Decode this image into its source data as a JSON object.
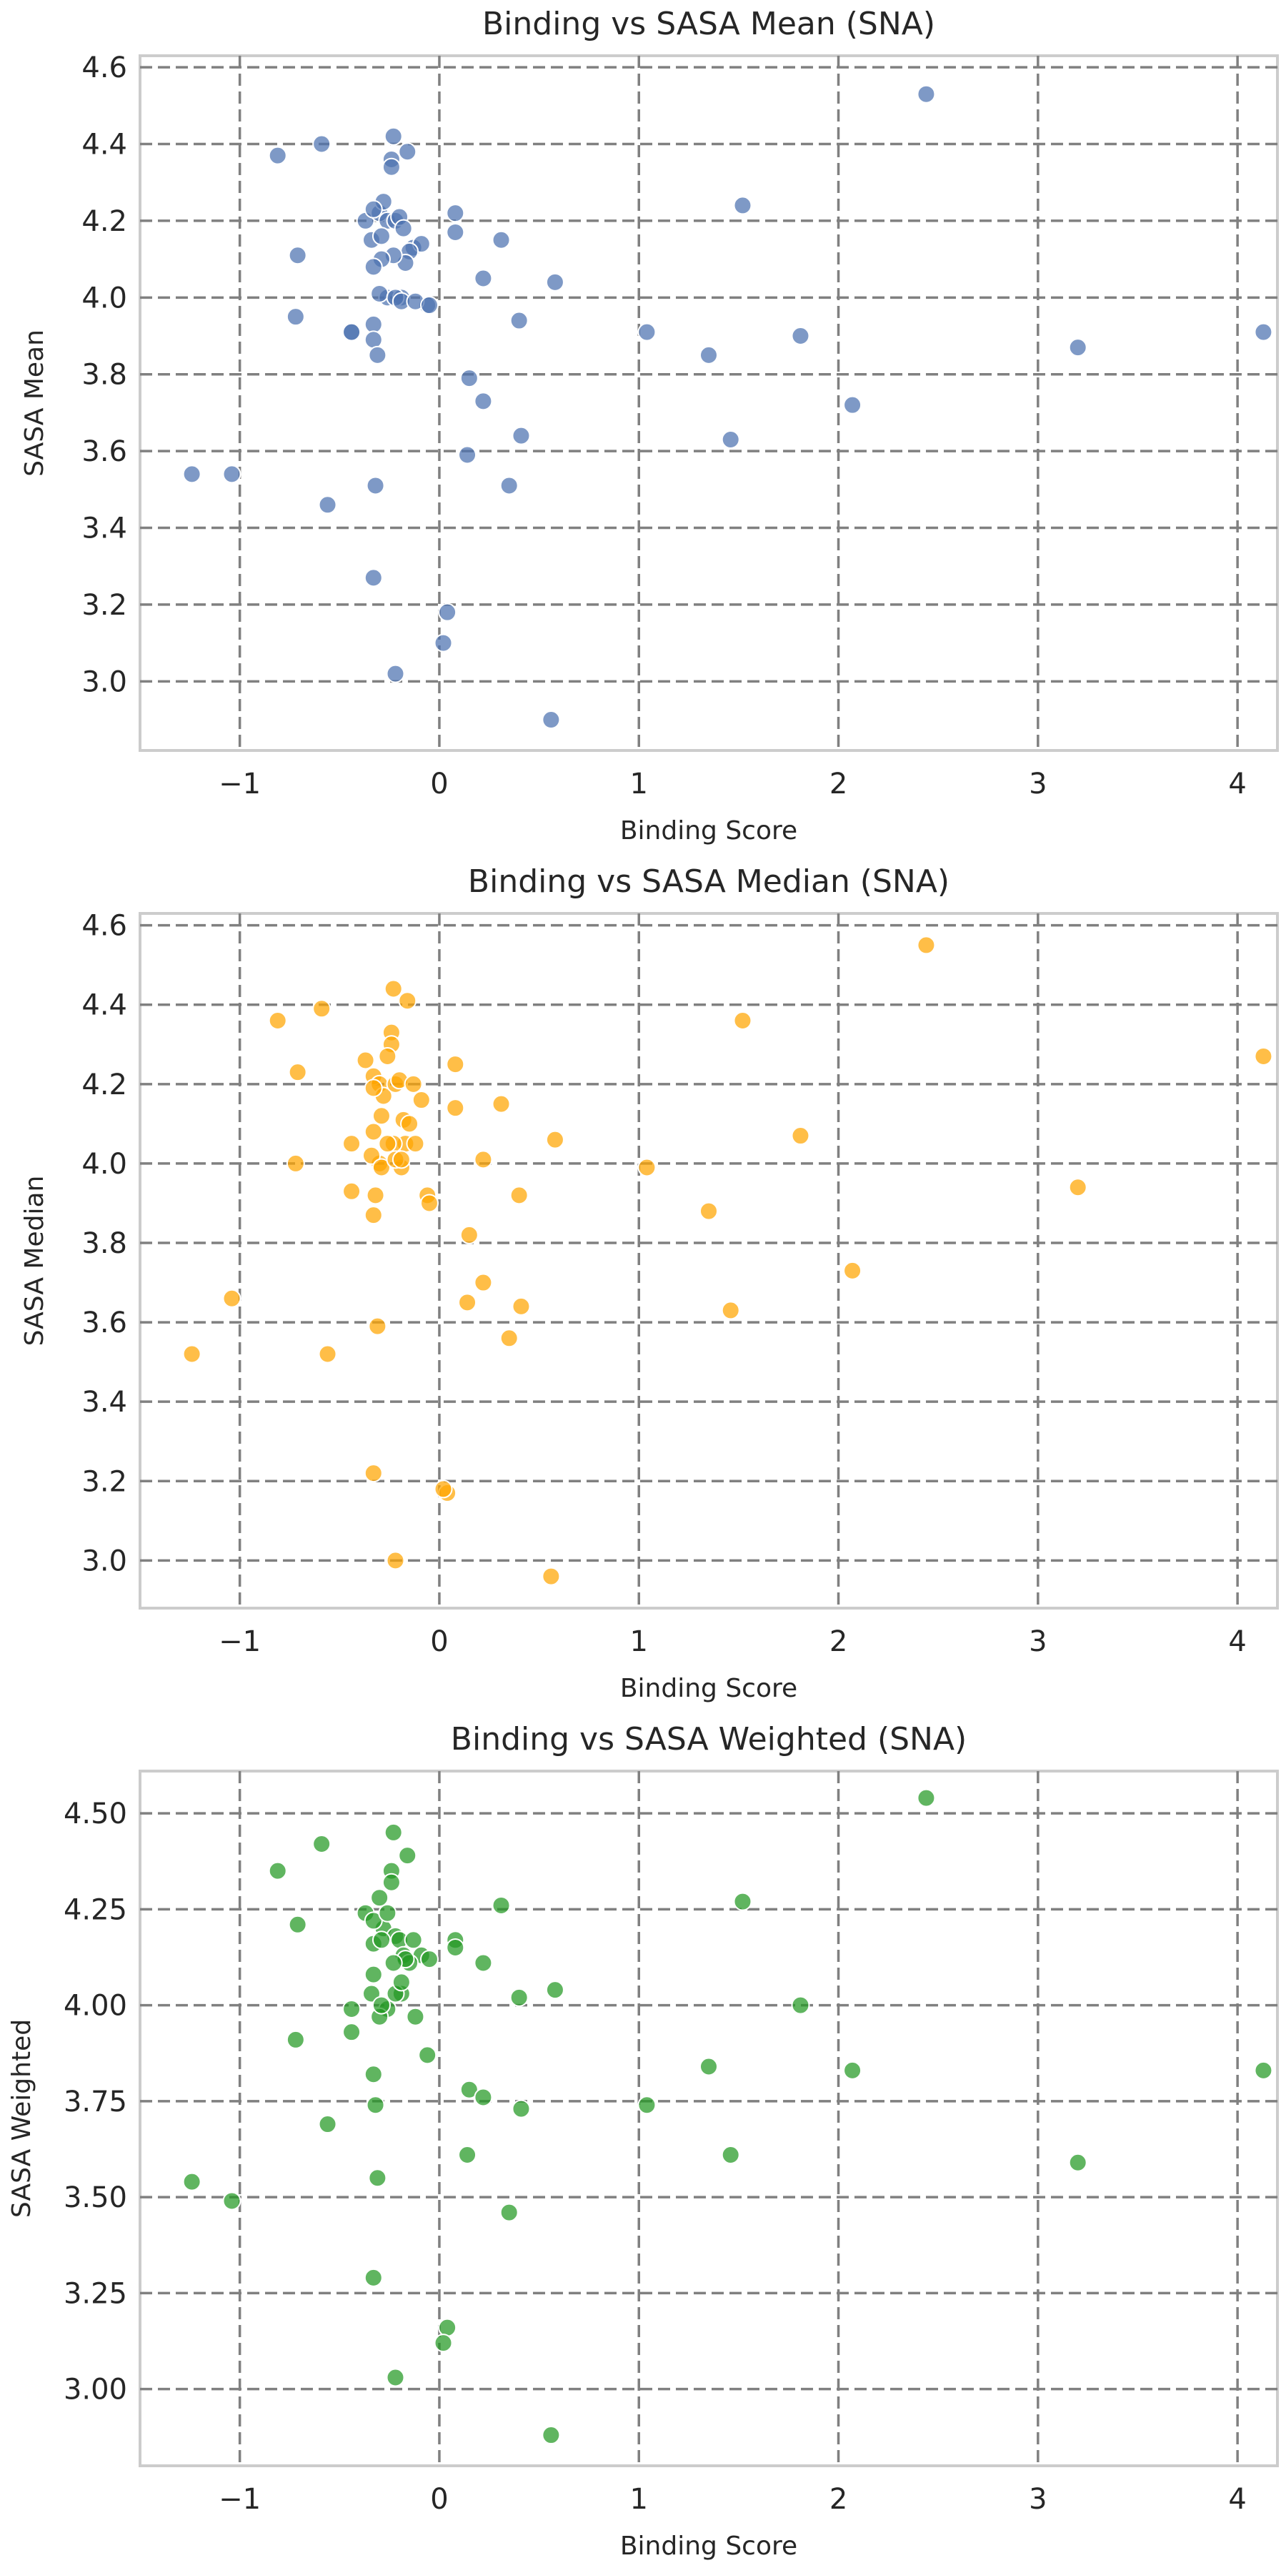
{
  "chart_data": [
    {
      "type": "scatter",
      "title": "Binding vs SASA Mean (SNA)",
      "xlabel": "Binding Score",
      "ylabel": "SASA Mean",
      "xlim": [
        -1.5,
        4.2
      ],
      "ylim": [
        2.82,
        4.63
      ],
      "xticks": [
        -1,
        0,
        1,
        2,
        3,
        4
      ],
      "xtick_labels": [
        "−1",
        "0",
        "1",
        "2",
        "3",
        "4"
      ],
      "yticks": [
        3.0,
        3.2,
        3.4,
        3.6,
        3.8,
        4.0,
        4.2,
        4.4,
        4.6
      ],
      "ytick_labels": [
        "3.0",
        "3.2",
        "3.4",
        "3.6",
        "3.8",
        "4.0",
        "4.2",
        "4.4",
        "4.6"
      ],
      "grid": true,
      "color": "#4c72b0",
      "x": [
        -0.59,
        -0.81,
        -0.71,
        -0.72,
        -0.44,
        -0.44,
        -0.33,
        -0.33,
        -0.31,
        -1.24,
        -1.04,
        -0.56,
        -0.32,
        -0.33,
        -0.23,
        -0.24,
        -0.24,
        -0.16,
        -0.37,
        -0.3,
        -0.28,
        -0.33,
        -0.26,
        -0.22,
        -0.2,
        -0.18,
        -0.13,
        -0.09,
        -0.15,
        -0.17,
        -0.06,
        -0.23,
        -0.29,
        -0.33,
        -0.26,
        -0.19,
        -0.3,
        -0.34,
        -0.29,
        -0.22,
        -0.19,
        -0.12,
        -0.05,
        0.08,
        0.08,
        0.31,
        0.22,
        0.58,
        0.4,
        1.52,
        1.04,
        1.35,
        1.81,
        3.2,
        4.13,
        2.44,
        0.15,
        0.22,
        2.07,
        0.14,
        0.35,
        0.41,
        1.46,
        0.04,
        0.02,
        0.56,
        -0.22
      ],
      "y": [
        4.4,
        4.37,
        4.11,
        3.95,
        3.91,
        3.91,
        3.93,
        3.89,
        3.85,
        3.54,
        3.54,
        3.46,
        3.51,
        3.27,
        4.42,
        4.36,
        4.34,
        4.38,
        4.2,
        4.22,
        4.25,
        4.23,
        4.2,
        4.2,
        4.21,
        4.18,
        4.13,
        4.14,
        4.12,
        4.09,
        3.98,
        4.11,
        4.1,
        4.08,
        4.0,
        4.0,
        4.01,
        4.15,
        4.16,
        4.0,
        3.99,
        3.99,
        3.98,
        4.22,
        4.17,
        4.15,
        4.05,
        4.04,
        3.94,
        4.24,
        3.91,
        3.85,
        3.9,
        3.87,
        3.91,
        4.53,
        3.79,
        3.73,
        3.72,
        3.59,
        3.51,
        3.64,
        3.63,
        3.18,
        3.1,
        2.9,
        3.02
      ]
    },
    {
      "type": "scatter",
      "title": "Binding vs SASA Median (SNA)",
      "xlabel": "Binding Score",
      "ylabel": "SASA Median",
      "xlim": [
        -1.5,
        4.2
      ],
      "ylim": [
        2.88,
        4.63
      ],
      "xticks": [
        -1,
        0,
        1,
        2,
        3,
        4
      ],
      "xtick_labels": [
        "−1",
        "0",
        "1",
        "2",
        "3",
        "4"
      ],
      "yticks": [
        3.0,
        3.2,
        3.4,
        3.6,
        3.8,
        4.0,
        4.2,
        4.4,
        4.6
      ],
      "ytick_labels": [
        "3.0",
        "3.2",
        "3.4",
        "3.6",
        "3.8",
        "4.0",
        "4.2",
        "4.4",
        "4.6"
      ],
      "grid": true,
      "color": "#ffa500",
      "x": [
        -0.59,
        -0.81,
        -0.71,
        -0.72,
        -0.44,
        -0.44,
        -0.33,
        -0.33,
        -0.31,
        -1.24,
        -1.04,
        -0.56,
        -0.32,
        -0.33,
        -0.23,
        -0.24,
        -0.24,
        -0.16,
        -0.37,
        -0.3,
        -0.28,
        -0.33,
        -0.26,
        -0.22,
        -0.2,
        -0.18,
        -0.13,
        -0.09,
        -0.15,
        -0.17,
        -0.06,
        -0.23,
        -0.29,
        -0.33,
        -0.26,
        -0.19,
        -0.3,
        -0.34,
        -0.29,
        -0.22,
        -0.19,
        -0.12,
        -0.05,
        0.08,
        0.08,
        0.31,
        0.22,
        0.58,
        0.4,
        1.52,
        1.04,
        1.35,
        1.81,
        3.2,
        4.13,
        2.44,
        0.15,
        0.22,
        2.07,
        0.14,
        0.35,
        0.41,
        1.46,
        0.04,
        0.02,
        0.56,
        -0.22
      ],
      "y": [
        4.39,
        4.36,
        4.23,
        4.0,
        4.05,
        3.93,
        3.87,
        4.22,
        3.59,
        3.52,
        3.66,
        3.52,
        3.92,
        3.22,
        4.44,
        4.33,
        4.3,
        4.41,
        4.26,
        4.2,
        4.17,
        4.19,
        4.27,
        4.2,
        4.21,
        4.11,
        4.2,
        4.16,
        4.1,
        4.05,
        3.92,
        4.05,
        4.12,
        4.08,
        4.05,
        3.99,
        4.0,
        4.02,
        3.99,
        4.01,
        4.01,
        4.05,
        3.9,
        4.25,
        4.14,
        4.15,
        4.01,
        4.06,
        3.92,
        4.36,
        3.99,
        3.88,
        4.07,
        3.94,
        4.27,
        4.55,
        3.82,
        3.7,
        3.73,
        3.65,
        3.56,
        3.64,
        3.63,
        3.17,
        3.18,
        2.96,
        3.0
      ]
    },
    {
      "type": "scatter",
      "title": "Binding vs SASA Weighted (SNA)",
      "xlabel": "Binding Score",
      "ylabel": "SASA Weighted",
      "xlim": [
        -1.5,
        4.2
      ],
      "ylim": [
        2.8,
        4.61
      ],
      "xticks": [
        -1,
        0,
        1,
        2,
        3,
        4
      ],
      "xtick_labels": [
        "−1",
        "0",
        "1",
        "2",
        "3",
        "4"
      ],
      "yticks": [
        3.0,
        3.25,
        3.5,
        3.75,
        4.0,
        4.25,
        4.5
      ],
      "ytick_labels": [
        "3.00",
        "3.25",
        "3.50",
        "3.75",
        "4.00",
        "4.25",
        "4.50"
      ],
      "grid": true,
      "color": "#229922",
      "x": [
        -0.59,
        -0.81,
        -0.71,
        -0.72,
        -0.44,
        -0.44,
        -0.33,
        -0.33,
        -0.31,
        -1.24,
        -1.04,
        -0.56,
        -0.32,
        -0.33,
        -0.23,
        -0.24,
        -0.24,
        -0.16,
        -0.37,
        -0.3,
        -0.28,
        -0.33,
        -0.26,
        -0.22,
        -0.2,
        -0.18,
        -0.13,
        -0.09,
        -0.15,
        -0.17,
        -0.06,
        -0.23,
        -0.29,
        -0.33,
        -0.26,
        -0.19,
        -0.3,
        -0.34,
        -0.29,
        -0.22,
        -0.19,
        -0.12,
        -0.05,
        0.08,
        0.08,
        0.31,
        0.22,
        0.58,
        0.4,
        1.52,
        1.04,
        1.35,
        1.81,
        3.2,
        4.13,
        2.44,
        0.15,
        0.22,
        2.07,
        0.14,
        0.35,
        0.41,
        1.46,
        0.04,
        0.02,
        0.56,
        -0.22
      ],
      "y": [
        4.42,
        4.35,
        4.21,
        3.91,
        3.99,
        3.93,
        3.82,
        4.16,
        3.55,
        3.54,
        3.49,
        3.69,
        3.74,
        3.29,
        4.45,
        4.35,
        4.32,
        4.39,
        4.24,
        4.28,
        4.2,
        4.22,
        4.24,
        4.18,
        4.17,
        4.13,
        4.17,
        4.13,
        4.11,
        4.12,
        3.87,
        4.11,
        4.17,
        4.08,
        3.99,
        4.03,
        3.97,
        4.03,
        4.0,
        4.03,
        4.06,
        3.97,
        4.12,
        4.17,
        4.15,
        4.26,
        4.11,
        4.04,
        4.02,
        4.27,
        3.74,
        3.84,
        4.0,
        3.59,
        3.83,
        4.54,
        3.78,
        3.76,
        3.83,
        3.61,
        3.46,
        3.73,
        3.61,
        3.16,
        3.12,
        2.88,
        3.03
      ]
    }
  ]
}
